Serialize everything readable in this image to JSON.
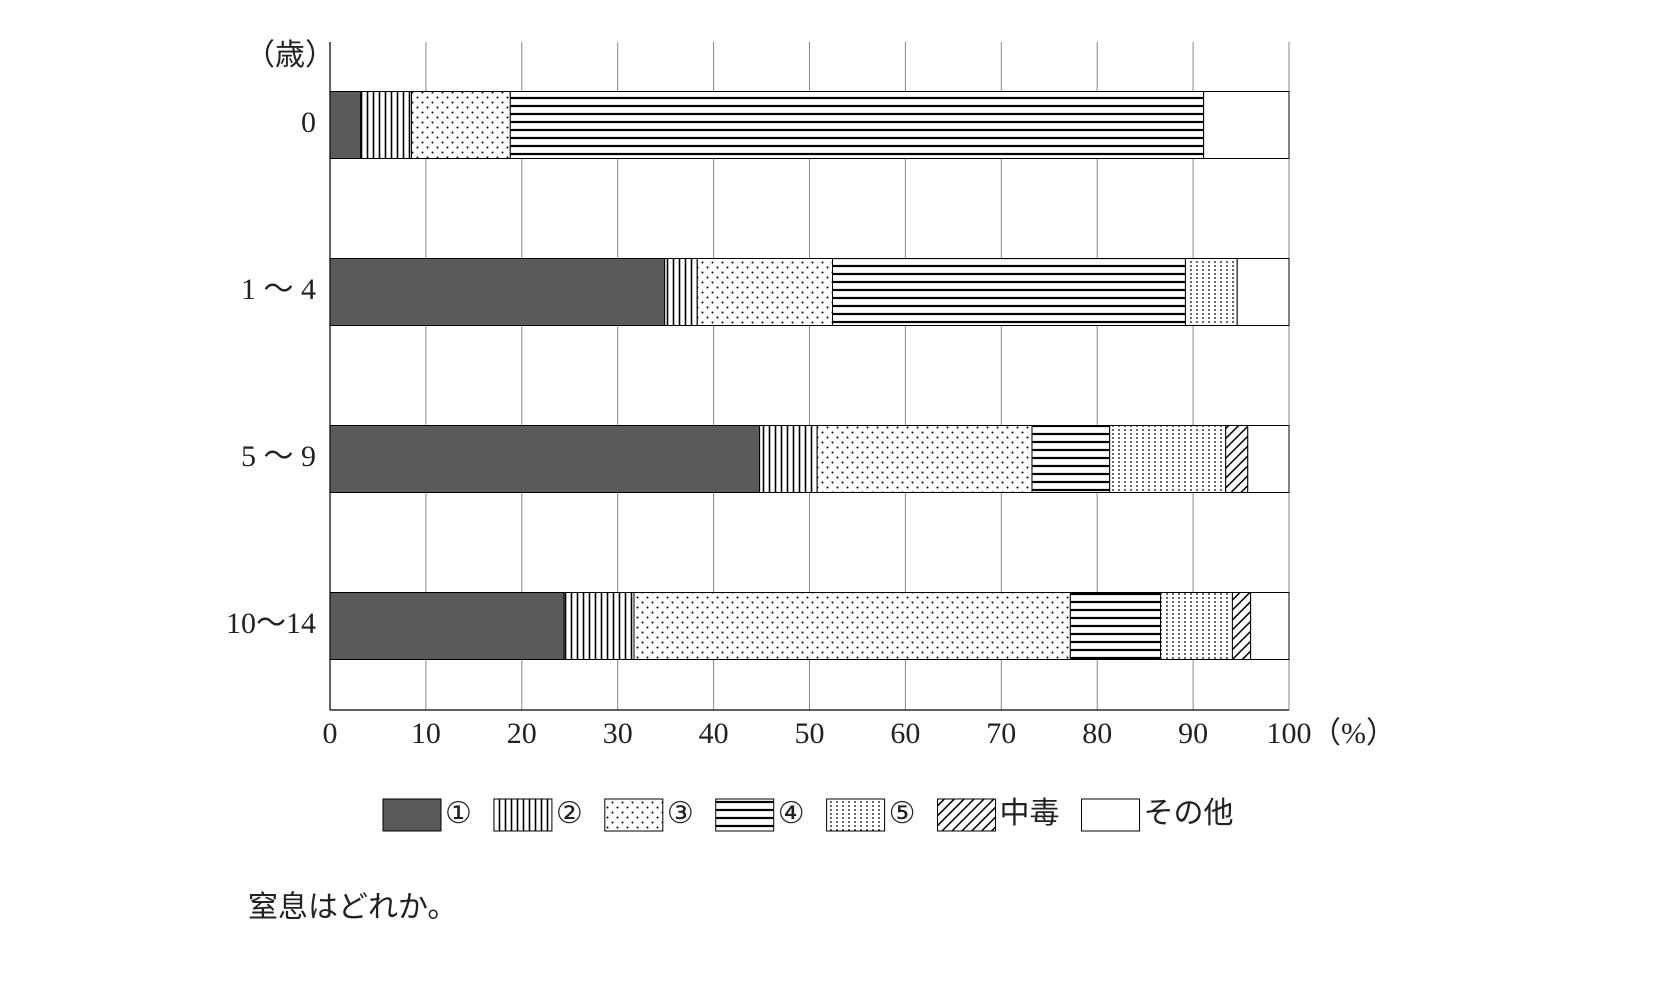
{
  "chart_data": {
    "type": "stacked-bar-horizontal",
    "y_label": "（歳）",
    "x_unit": "（%）",
    "caption": "窒息はどれか。",
    "categories": [
      "0",
      "1 ～ 4",
      "5 ～ 9",
      "10～14"
    ],
    "series": [
      {
        "name": "①",
        "color": "#5a5a5a",
        "pattern": "solid",
        "values": [
          3.2,
          34.9,
          44.8,
          24.4
        ]
      },
      {
        "name": "②",
        "color": "#ffffff",
        "pattern": "vertical-lines",
        "values": [
          5.3,
          3.4,
          6.0,
          7.3
        ]
      },
      {
        "name": "③",
        "color": "#ffffff",
        "pattern": "sparse-dots",
        "values": [
          10.3,
          14.1,
          22.4,
          45.5
        ]
      },
      {
        "name": "④",
        "color": "#ffffff",
        "pattern": "horizontal-lines",
        "values": [
          72.3,
          36.8,
          8.1,
          9.4
        ]
      },
      {
        "name": "⑤",
        "color": "#ffffff",
        "pattern": "dense-dots",
        "values": [
          0,
          5.4,
          12.1,
          7.5
        ]
      },
      {
        "name": "中毒",
        "color": "#ffffff",
        "pattern": "diagonal-lines",
        "values": [
          0,
          0,
          2.3,
          1.9
        ]
      },
      {
        "name": "その他",
        "color": "#ffffff",
        "pattern": "solid",
        "values": [
          8.9,
          5.4,
          4.3,
          4.0
        ]
      }
    ],
    "xlim": [
      0,
      100
    ],
    "xticks": [
      0,
      10,
      20,
      30,
      40,
      50,
      60,
      70,
      80,
      90,
      100
    ],
    "grid": true
  }
}
